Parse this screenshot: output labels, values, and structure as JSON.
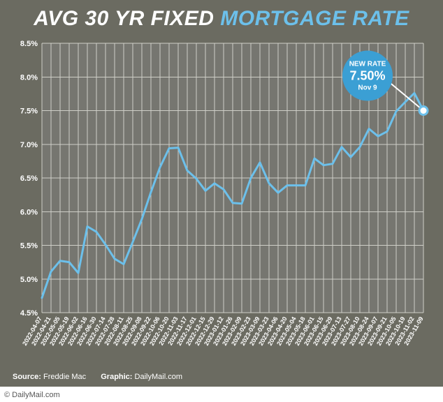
{
  "title": {
    "prefix": "AVG 30 YR FIXED ",
    "accent": "MORTGAGE RATE",
    "prefix_color": "#ffffff",
    "accent_color": "#6cc0eb",
    "fontsize": 30,
    "italic": true,
    "weight": 900
  },
  "chart": {
    "type": "line",
    "background_color": "#6b6b61",
    "plot_bg_color": "#767670",
    "grid_color": "#cfcfc8",
    "line_color": "#6cc0eb",
    "line_width": 3,
    "y": {
      "min": 4.5,
      "max": 8.5,
      "step": 0.5,
      "labels": [
        "4.5%",
        "5.0%",
        "5.5%",
        "6.0%",
        "6.5%",
        "7.0%",
        "7.5%",
        "8.0%",
        "8.5%"
      ],
      "label_fontsize": 11,
      "label_color": "#ffffff"
    },
    "x": {
      "label_fontsize": 9,
      "label_color": "#ffffff",
      "rotation": -60
    },
    "series": [
      {
        "date": "2022-04-07",
        "v": 4.72
      },
      {
        "date": "2022-04-21",
        "v": 5.11
      },
      {
        "date": "2022-05-05",
        "v": 5.27
      },
      {
        "date": "2022-05-19",
        "v": 5.25
      },
      {
        "date": "2022-06-02",
        "v": 5.09
      },
      {
        "date": "2022-06-16",
        "v": 5.78
      },
      {
        "date": "2022-06-30",
        "v": 5.7
      },
      {
        "date": "2022-07-14",
        "v": 5.51
      },
      {
        "date": "2022-07-28",
        "v": 5.3
      },
      {
        "date": "2022-08-11",
        "v": 5.22
      },
      {
        "date": "2022-08-25",
        "v": 5.55
      },
      {
        "date": "2022-09-08",
        "v": 5.89
      },
      {
        "date": "2022-09-22",
        "v": 6.29
      },
      {
        "date": "2022-10-06",
        "v": 6.66
      },
      {
        "date": "2022-10-20",
        "v": 6.94
      },
      {
        "date": "2022-11-03",
        "v": 6.95
      },
      {
        "date": "2022-11-17",
        "v": 6.61
      },
      {
        "date": "2022-12-01",
        "v": 6.49
      },
      {
        "date": "2022-12-15",
        "v": 6.31
      },
      {
        "date": "2022-12-29",
        "v": 6.42
      },
      {
        "date": "2023-01-12",
        "v": 6.33
      },
      {
        "date": "2023-01-26",
        "v": 6.13
      },
      {
        "date": "2023-02-09",
        "v": 6.12
      },
      {
        "date": "2023-02-23",
        "v": 6.5
      },
      {
        "date": "2023-03-09",
        "v": 6.73
      },
      {
        "date": "2023-03-23",
        "v": 6.42
      },
      {
        "date": "2023-04-06",
        "v": 6.28
      },
      {
        "date": "2023-04-20",
        "v": 6.39
      },
      {
        "date": "2023-05-04",
        "v": 6.39
      },
      {
        "date": "2023-05-18",
        "v": 6.39
      },
      {
        "date": "2023-06-01",
        "v": 6.79
      },
      {
        "date": "2023-06-15",
        "v": 6.69
      },
      {
        "date": "2023-06-29",
        "v": 6.71
      },
      {
        "date": "2023-07-13",
        "v": 6.96
      },
      {
        "date": "2023-07-27",
        "v": 6.81
      },
      {
        "date": "2023-08-10",
        "v": 6.96
      },
      {
        "date": "2023-08-24",
        "v": 7.23
      },
      {
        "date": "2023-09-07",
        "v": 7.12
      },
      {
        "date": "2023-09-21",
        "v": 7.19
      },
      {
        "date": "2023-10-05",
        "v": 7.49
      },
      {
        "date": "2023-10-19",
        "v": 7.63
      },
      {
        "date": "2023-11-02",
        "v": 7.76
      },
      {
        "date": "2023-11-09",
        "v": 7.5
      }
    ],
    "callout": {
      "line1": "NEW RATE",
      "line2": "7.50%",
      "line3": "Nov 9",
      "circle_color": "#3b9fd4",
      "radius": 36,
      "text_color": "#ffffff"
    },
    "end_marker": {
      "fill": "#ffffff",
      "stroke": "#6cc0eb",
      "radius": 6
    }
  },
  "footer": {
    "source_label": "Source:",
    "source_value": "Freddie Mac",
    "graphic_label": "Graphic:",
    "graphic_value": "DailyMail.com",
    "color": "#ffffff",
    "fontsize": 11
  },
  "credit": {
    "text": "© DailyMail.com",
    "color": "#555555",
    "fontsize": 11
  }
}
